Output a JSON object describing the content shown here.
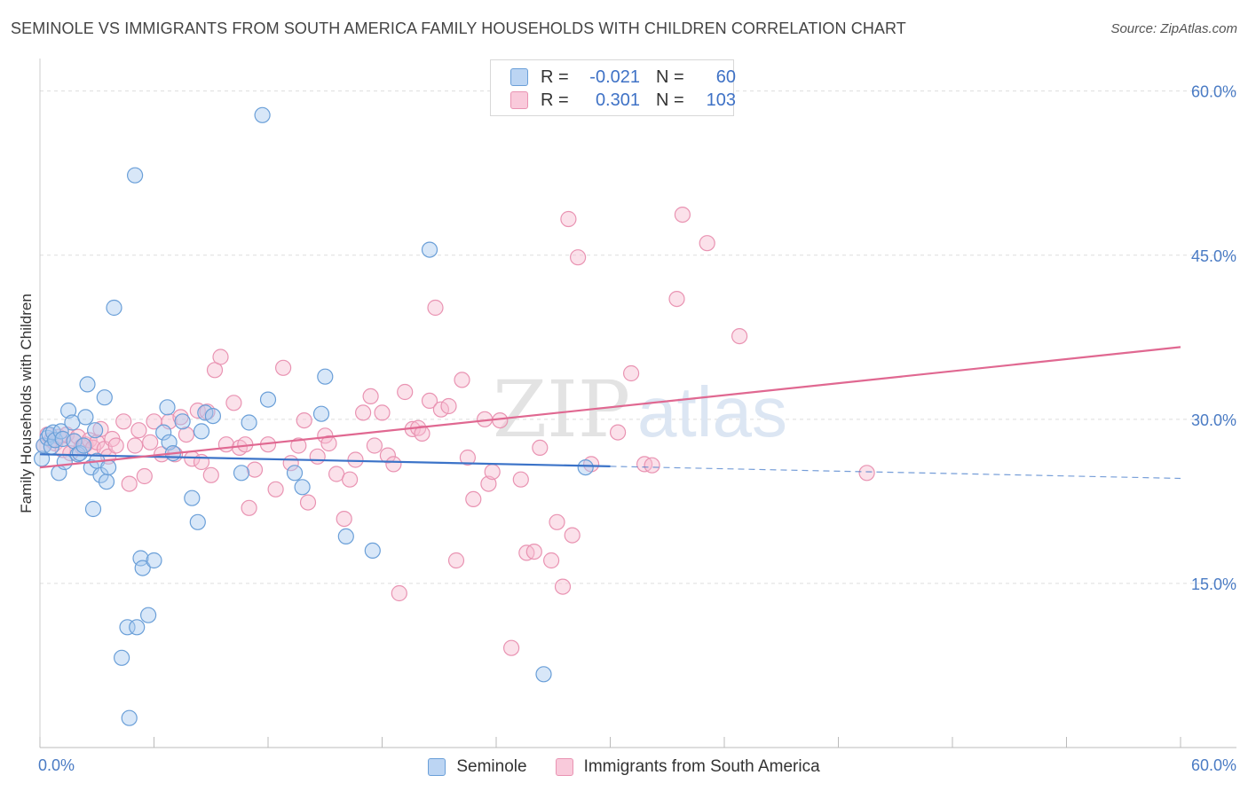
{
  "title": "SEMINOLE VS IMMIGRANTS FROM SOUTH AMERICA FAMILY HOUSEHOLDS WITH CHILDREN CORRELATION CHART",
  "source": "Source: ZipAtlas.com",
  "watermark": {
    "zip": "ZIP",
    "atlas": "atlas"
  },
  "colors": {
    "seminole_fill": "#a9c9ef",
    "seminole_stroke": "#6a9fd8",
    "seminole_line": "#3b73c8",
    "immigrants_fill": "#f6bcd0",
    "immigrants_stroke": "#e993b2",
    "immigrants_line": "#e06891",
    "grid": "#dddddd",
    "tick_text": "#4a7bc4"
  },
  "stats_box": {
    "rows": [
      {
        "r_label": "R =",
        "r_value": "-0.021",
        "n_label": "N =",
        "n_value": "60"
      },
      {
        "r_label": "R =",
        "r_value": "0.301",
        "n_label": "N =",
        "n_value": "103"
      }
    ]
  },
  "legend": {
    "items": [
      "Seminole",
      "Immigrants from South America"
    ]
  },
  "chart_data": {
    "type": "scatter",
    "title": "SEMINOLE VS IMMIGRANTS FROM SOUTH AMERICA FAMILY HOUSEHOLDS WITH CHILDREN CORRELATION CHART",
    "xlabel": "",
    "ylabel": "Family Households with Children",
    "xlim": [
      0,
      60
    ],
    "ylim": [
      0,
      62
    ],
    "x_tick_labels": [
      "0.0%",
      "60.0%"
    ],
    "y_ticks": [
      15,
      30,
      45,
      60
    ],
    "y_tick_labels": [
      "15.0%",
      "30.0%",
      "45.0%",
      "60.0%"
    ],
    "grid": true,
    "legend_position": "bottom",
    "series": [
      {
        "name": "Seminole",
        "r": -0.021,
        "n": 60,
        "trend": {
          "x0": 0,
          "y0": 26.8,
          "x1": 30,
          "y1": 25.7,
          "dashed_to_x": 60,
          "dashed_to_y": 24.6
        },
        "points": [
          [
            0.1,
            26.4
          ],
          [
            0.2,
            27.6
          ],
          [
            0.4,
            28.3
          ],
          [
            0.5,
            28.6
          ],
          [
            0.6,
            27.5
          ],
          [
            0.7,
            28.8
          ],
          [
            0.8,
            28.1
          ],
          [
            1.0,
            25.1
          ],
          [
            1.1,
            28.9
          ],
          [
            1.2,
            28.2
          ],
          [
            1.3,
            26.1
          ],
          [
            1.5,
            30.8
          ],
          [
            1.7,
            29.7
          ],
          [
            1.8,
            28.0
          ],
          [
            2.0,
            26.8
          ],
          [
            2.1,
            26.9
          ],
          [
            2.3,
            27.6
          ],
          [
            2.4,
            30.2
          ],
          [
            2.5,
            33.2
          ],
          [
            2.7,
            25.6
          ],
          [
            2.8,
            21.8
          ],
          [
            2.9,
            29.0
          ],
          [
            3.0,
            26.2
          ],
          [
            3.2,
            24.9
          ],
          [
            3.4,
            32.0
          ],
          [
            3.5,
            24.3
          ],
          [
            3.6,
            25.6
          ],
          [
            3.9,
            40.2
          ],
          [
            4.3,
            8.2
          ],
          [
            4.6,
            11.0
          ],
          [
            4.7,
            2.7
          ],
          [
            5.0,
            52.3
          ],
          [
            5.1,
            11.0
          ],
          [
            5.3,
            17.3
          ],
          [
            5.4,
            16.4
          ],
          [
            5.7,
            12.1
          ],
          [
            6.0,
            17.1
          ],
          [
            6.5,
            28.8
          ],
          [
            6.7,
            31.1
          ],
          [
            6.8,
            27.9
          ],
          [
            7.0,
            26.9
          ],
          [
            7.5,
            29.8
          ],
          [
            8.0,
            22.8
          ],
          [
            8.3,
            20.6
          ],
          [
            8.5,
            28.9
          ],
          [
            8.7,
            30.6
          ],
          [
            9.1,
            30.3
          ],
          [
            10.6,
            25.1
          ],
          [
            11.0,
            29.7
          ],
          [
            11.7,
            57.8
          ],
          [
            12.0,
            31.8
          ],
          [
            13.4,
            25.1
          ],
          [
            13.8,
            23.8
          ],
          [
            14.8,
            30.5
          ],
          [
            15.0,
            33.9
          ],
          [
            16.1,
            19.3
          ],
          [
            17.5,
            18.0
          ],
          [
            20.5,
            45.5
          ],
          [
            26.5,
            6.7
          ],
          [
            28.7,
            25.6
          ]
        ]
      },
      {
        "name": "Immigrants from South America",
        "r": 0.301,
        "n": 103,
        "trend": {
          "x0": 0,
          "y0": 25.6,
          "x1": 60,
          "y1": 36.6
        },
        "points": [
          [
            0.2,
            27.6
          ],
          [
            0.4,
            28.6
          ],
          [
            0.6,
            28.1
          ],
          [
            0.8,
            27.8
          ],
          [
            1.0,
            28.4
          ],
          [
            1.2,
            27.2
          ],
          [
            1.4,
            28.6
          ],
          [
            1.6,
            26.9
          ],
          [
            1.8,
            28.0
          ],
          [
            2.0,
            28.4
          ],
          [
            2.2,
            27.5
          ],
          [
            2.4,
            27.7
          ],
          [
            2.6,
            28.1
          ],
          [
            2.8,
            27.4
          ],
          [
            3.0,
            27.9
          ],
          [
            3.2,
            29.1
          ],
          [
            3.4,
            27.3
          ],
          [
            3.6,
            26.6
          ],
          [
            3.8,
            28.2
          ],
          [
            4.0,
            27.6
          ],
          [
            4.4,
            29.8
          ],
          [
            4.7,
            24.1
          ],
          [
            5.0,
            27.6
          ],
          [
            5.2,
            29.0
          ],
          [
            5.5,
            24.8
          ],
          [
            5.8,
            27.9
          ],
          [
            6.0,
            29.8
          ],
          [
            6.4,
            26.8
          ],
          [
            6.8,
            29.8
          ],
          [
            7.1,
            26.8
          ],
          [
            7.4,
            30.2
          ],
          [
            7.7,
            28.6
          ],
          [
            8.0,
            26.4
          ],
          [
            8.3,
            30.8
          ],
          [
            8.5,
            26.1
          ],
          [
            8.8,
            30.7
          ],
          [
            9.0,
            24.9
          ],
          [
            9.2,
            34.5
          ],
          [
            9.5,
            35.7
          ],
          [
            9.8,
            27.7
          ],
          [
            10.2,
            31.5
          ],
          [
            10.5,
            27.4
          ],
          [
            10.8,
            27.7
          ],
          [
            11.0,
            21.9
          ],
          [
            11.3,
            25.4
          ],
          [
            12.0,
            27.7
          ],
          [
            12.4,
            23.6
          ],
          [
            12.8,
            34.7
          ],
          [
            13.2,
            26.0
          ],
          [
            13.6,
            27.6
          ],
          [
            13.9,
            29.9
          ],
          [
            14.1,
            22.4
          ],
          [
            14.6,
            26.6
          ],
          [
            15.0,
            28.5
          ],
          [
            15.2,
            27.8
          ],
          [
            15.6,
            25.0
          ],
          [
            16.0,
            20.9
          ],
          [
            16.3,
            24.5
          ],
          [
            16.6,
            26.3
          ],
          [
            17.0,
            30.6
          ],
          [
            17.4,
            32.1
          ],
          [
            17.6,
            27.6
          ],
          [
            18.0,
            30.6
          ],
          [
            18.3,
            26.7
          ],
          [
            18.6,
            25.9
          ],
          [
            18.9,
            14.1
          ],
          [
            19.2,
            32.5
          ],
          [
            19.6,
            29.1
          ],
          [
            19.9,
            29.2
          ],
          [
            20.1,
            28.7
          ],
          [
            20.5,
            31.7
          ],
          [
            20.8,
            40.2
          ],
          [
            21.1,
            30.9
          ],
          [
            21.5,
            31.2
          ],
          [
            21.9,
            17.1
          ],
          [
            22.2,
            33.6
          ],
          [
            22.5,
            26.5
          ],
          [
            22.8,
            22.7
          ],
          [
            23.4,
            30.0
          ],
          [
            23.6,
            24.1
          ],
          [
            23.8,
            25.2
          ],
          [
            24.2,
            29.9
          ],
          [
            24.8,
            9.1
          ],
          [
            25.3,
            24.5
          ],
          [
            25.6,
            17.8
          ],
          [
            26.0,
            17.9
          ],
          [
            26.3,
            27.4
          ],
          [
            26.9,
            17.1
          ],
          [
            27.2,
            20.6
          ],
          [
            27.5,
            14.7
          ],
          [
            27.8,
            48.3
          ],
          [
            28.0,
            19.4
          ],
          [
            28.3,
            44.8
          ],
          [
            29.0,
            25.9
          ],
          [
            30.4,
            28.8
          ],
          [
            31.1,
            34.2
          ],
          [
            31.8,
            25.9
          ],
          [
            32.2,
            25.8
          ],
          [
            33.5,
            41.0
          ],
          [
            33.8,
            48.7
          ],
          [
            35.1,
            46.1
          ],
          [
            36.8,
            37.6
          ],
          [
            43.5,
            25.1
          ]
        ]
      }
    ]
  }
}
